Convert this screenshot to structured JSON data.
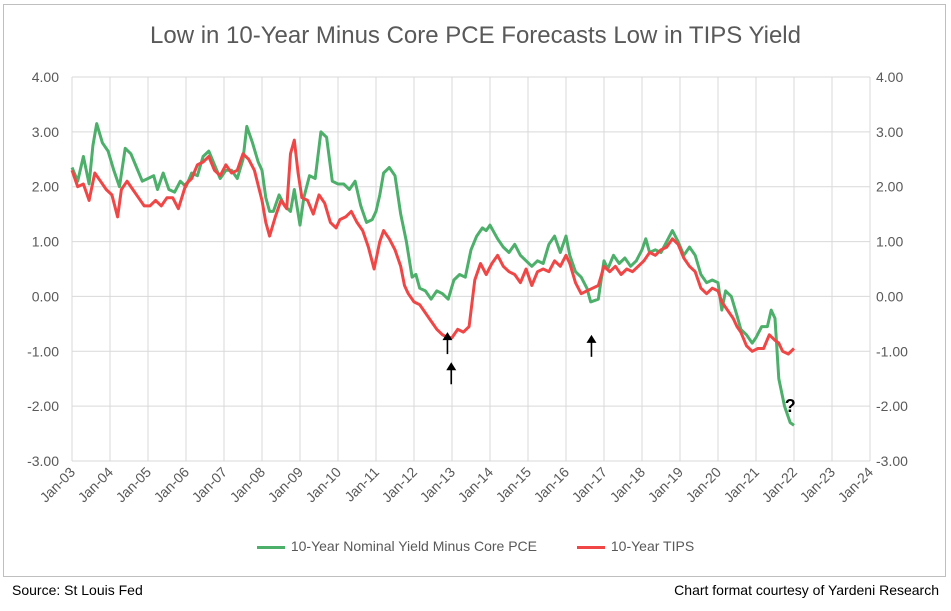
{
  "title": "Low in 10-Year Minus Core PCE Forecasts Low in TIPS Yield",
  "footer": {
    "source": "Source: St Louis Fed",
    "credit": "Chart format courtesy of Yardeni Research"
  },
  "colors": {
    "nominal": "#4caf6a",
    "tips": "#f04646",
    "grid": "#d9d9d9"
  },
  "chart_data": {
    "type": "line",
    "title": "Low in 10-Year Minus Core PCE Forecasts Low in TIPS Yield",
    "ylim": [
      -3,
      4
    ],
    "ytick_labels": [
      "4.00",
      "3.00",
      "2.00",
      "1.00",
      "0.00",
      "-1.00",
      "-2.00",
      "-3.00"
    ],
    "xtick_labels": [
      "Jan-03",
      "Jan-04",
      "Jan-05",
      "Jan-06",
      "Jan-07",
      "Jan-08",
      "Jan-09",
      "Jan-10",
      "Jan-11",
      "Jan-12",
      "Jan-13",
      "Jan-14",
      "Jan-15",
      "Jan-16",
      "Jan-17",
      "Jan-18",
      "Jan-19",
      "Jan-20",
      "Jan-21",
      "Jan-22",
      "Jan-23",
      "Jan-24"
    ],
    "x_range": [
      2003,
      2024
    ],
    "grid": true,
    "legend_position": "bottom",
    "series": [
      {
        "name": "10-Year Nominal Yield Minus Core PCE",
        "points": [
          [
            2003.0,
            2.35
          ],
          [
            2003.15,
            2.1
          ],
          [
            2003.3,
            2.55
          ],
          [
            2003.45,
            2.05
          ],
          [
            2003.55,
            2.75
          ],
          [
            2003.65,
            3.15
          ],
          [
            2003.8,
            2.8
          ],
          [
            2003.95,
            2.65
          ],
          [
            2004.1,
            2.3
          ],
          [
            2004.25,
            2.0
          ],
          [
            2004.4,
            2.7
          ],
          [
            2004.55,
            2.6
          ],
          [
            2004.7,
            2.35
          ],
          [
            2004.85,
            2.1
          ],
          [
            2005.0,
            2.15
          ],
          [
            2005.15,
            2.2
          ],
          [
            2005.25,
            1.95
          ],
          [
            2005.4,
            2.25
          ],
          [
            2005.55,
            1.95
          ],
          [
            2005.7,
            1.9
          ],
          [
            2005.85,
            2.1
          ],
          [
            2006.0,
            2.0
          ],
          [
            2006.15,
            2.25
          ],
          [
            2006.3,
            2.2
          ],
          [
            2006.45,
            2.55
          ],
          [
            2006.6,
            2.65
          ],
          [
            2006.75,
            2.4
          ],
          [
            2006.9,
            2.15
          ],
          [
            2007.05,
            2.3
          ],
          [
            2007.2,
            2.3
          ],
          [
            2007.35,
            2.15
          ],
          [
            2007.5,
            2.5
          ],
          [
            2007.6,
            3.1
          ],
          [
            2007.75,
            2.8
          ],
          [
            2007.9,
            2.45
          ],
          [
            2008.0,
            2.3
          ],
          [
            2008.1,
            1.8
          ],
          [
            2008.2,
            1.55
          ],
          [
            2008.3,
            1.55
          ],
          [
            2008.45,
            1.85
          ],
          [
            2008.6,
            1.65
          ],
          [
            2008.75,
            1.55
          ],
          [
            2008.85,
            1.95
          ],
          [
            2009.0,
            1.3
          ],
          [
            2009.1,
            1.8
          ],
          [
            2009.25,
            2.2
          ],
          [
            2009.4,
            2.15
          ],
          [
            2009.55,
            3.0
          ],
          [
            2009.7,
            2.9
          ],
          [
            2009.85,
            2.1
          ],
          [
            2010.0,
            2.05
          ],
          [
            2010.15,
            2.05
          ],
          [
            2010.3,
            1.95
          ],
          [
            2010.45,
            2.1
          ],
          [
            2010.6,
            1.65
          ],
          [
            2010.75,
            1.35
          ],
          [
            2010.9,
            1.4
          ],
          [
            2011.0,
            1.55
          ],
          [
            2011.1,
            1.85
          ],
          [
            2011.2,
            2.25
          ],
          [
            2011.35,
            2.35
          ],
          [
            2011.5,
            2.2
          ],
          [
            2011.65,
            1.5
          ],
          [
            2011.8,
            1.0
          ],
          [
            2011.95,
            0.35
          ],
          [
            2012.05,
            0.4
          ],
          [
            2012.15,
            0.15
          ],
          [
            2012.3,
            0.1
          ],
          [
            2012.45,
            -0.05
          ],
          [
            2012.6,
            0.1
          ],
          [
            2012.75,
            0.05
          ],
          [
            2012.9,
            -0.05
          ],
          [
            2013.05,
            0.3
          ],
          [
            2013.2,
            0.4
          ],
          [
            2013.35,
            0.35
          ],
          [
            2013.5,
            0.85
          ],
          [
            2013.65,
            1.1
          ],
          [
            2013.8,
            1.25
          ],
          [
            2013.9,
            1.2
          ],
          [
            2014.0,
            1.3
          ],
          [
            2014.2,
            1.05
          ],
          [
            2014.35,
            0.9
          ],
          [
            2014.5,
            0.8
          ],
          [
            2014.65,
            0.95
          ],
          [
            2014.8,
            0.75
          ],
          [
            2014.95,
            0.65
          ],
          [
            2015.1,
            0.55
          ],
          [
            2015.25,
            0.65
          ],
          [
            2015.4,
            0.6
          ],
          [
            2015.55,
            0.95
          ],
          [
            2015.7,
            1.1
          ],
          [
            2015.85,
            0.8
          ],
          [
            2016.0,
            1.1
          ],
          [
            2016.1,
            0.75
          ],
          [
            2016.25,
            0.45
          ],
          [
            2016.4,
            0.35
          ],
          [
            2016.55,
            0.15
          ],
          [
            2016.65,
            -0.1
          ],
          [
            2016.85,
            -0.05
          ],
          [
            2017.0,
            0.65
          ],
          [
            2017.1,
            0.5
          ],
          [
            2017.25,
            0.75
          ],
          [
            2017.4,
            0.6
          ],
          [
            2017.55,
            0.7
          ],
          [
            2017.7,
            0.55
          ],
          [
            2017.85,
            0.65
          ],
          [
            2018.0,
            0.85
          ],
          [
            2018.1,
            1.05
          ],
          [
            2018.2,
            0.8
          ],
          [
            2018.35,
            0.85
          ],
          [
            2018.5,
            0.8
          ],
          [
            2018.65,
            1.0
          ],
          [
            2018.8,
            1.2
          ],
          [
            2018.95,
            1.0
          ],
          [
            2019.1,
            0.75
          ],
          [
            2019.25,
            0.9
          ],
          [
            2019.4,
            0.75
          ],
          [
            2019.55,
            0.4
          ],
          [
            2019.7,
            0.25
          ],
          [
            2019.85,
            0.3
          ],
          [
            2020.0,
            0.25
          ],
          [
            2020.1,
            -0.25
          ],
          [
            2020.2,
            0.1
          ],
          [
            2020.35,
            0.0
          ],
          [
            2020.5,
            -0.35
          ],
          [
            2020.6,
            -0.6
          ],
          [
            2020.75,
            -0.7
          ],
          [
            2020.9,
            -0.85
          ],
          [
            2021.0,
            -0.75
          ],
          [
            2021.15,
            -0.55
          ],
          [
            2021.3,
            -0.55
          ],
          [
            2021.4,
            -0.25
          ],
          [
            2021.5,
            -0.4
          ],
          [
            2021.6,
            -1.5
          ],
          [
            2021.75,
            -2.0
          ],
          [
            2021.9,
            -2.3
          ],
          [
            2022.0,
            -2.35
          ]
        ]
      },
      {
        "name": "10-Year TIPS",
        "points": [
          [
            2003.0,
            2.3
          ],
          [
            2003.15,
            2.0
          ],
          [
            2003.3,
            2.05
          ],
          [
            2003.45,
            1.75
          ],
          [
            2003.6,
            2.25
          ],
          [
            2003.75,
            2.1
          ],
          [
            2003.9,
            1.95
          ],
          [
            2004.05,
            1.85
          ],
          [
            2004.2,
            1.45
          ],
          [
            2004.3,
            1.95
          ],
          [
            2004.45,
            2.1
          ],
          [
            2004.6,
            1.95
          ],
          [
            2004.75,
            1.8
          ],
          [
            2004.9,
            1.65
          ],
          [
            2005.05,
            1.65
          ],
          [
            2005.2,
            1.75
          ],
          [
            2005.35,
            1.65
          ],
          [
            2005.5,
            1.8
          ],
          [
            2005.65,
            1.8
          ],
          [
            2005.8,
            1.6
          ],
          [
            2006.0,
            2.05
          ],
          [
            2006.15,
            2.15
          ],
          [
            2006.3,
            2.4
          ],
          [
            2006.45,
            2.45
          ],
          [
            2006.6,
            2.55
          ],
          [
            2006.75,
            2.3
          ],
          [
            2006.9,
            2.2
          ],
          [
            2007.05,
            2.4
          ],
          [
            2007.2,
            2.25
          ],
          [
            2007.35,
            2.3
          ],
          [
            2007.5,
            2.6
          ],
          [
            2007.65,
            2.5
          ],
          [
            2007.8,
            2.3
          ],
          [
            2008.0,
            1.75
          ],
          [
            2008.1,
            1.35
          ],
          [
            2008.2,
            1.1
          ],
          [
            2008.35,
            1.45
          ],
          [
            2008.5,
            1.75
          ],
          [
            2008.65,
            1.6
          ],
          [
            2008.75,
            2.6
          ],
          [
            2008.85,
            2.85
          ],
          [
            2008.95,
            2.25
          ],
          [
            2009.05,
            1.8
          ],
          [
            2009.2,
            1.75
          ],
          [
            2009.35,
            1.5
          ],
          [
            2009.5,
            1.85
          ],
          [
            2009.65,
            1.7
          ],
          [
            2009.8,
            1.35
          ],
          [
            2009.95,
            1.25
          ],
          [
            2010.05,
            1.4
          ],
          [
            2010.2,
            1.45
          ],
          [
            2010.35,
            1.55
          ],
          [
            2010.5,
            1.35
          ],
          [
            2010.65,
            1.2
          ],
          [
            2010.8,
            0.9
          ],
          [
            2010.95,
            0.5
          ],
          [
            2011.1,
            1.0
          ],
          [
            2011.2,
            1.2
          ],
          [
            2011.35,
            1.05
          ],
          [
            2011.5,
            0.85
          ],
          [
            2011.65,
            0.55
          ],
          [
            2011.75,
            0.2
          ],
          [
            2011.85,
            0.05
          ],
          [
            2012.0,
            -0.1
          ],
          [
            2012.15,
            -0.15
          ],
          [
            2012.3,
            -0.3
          ],
          [
            2012.45,
            -0.45
          ],
          [
            2012.6,
            -0.6
          ],
          [
            2012.75,
            -0.7
          ],
          [
            2012.9,
            -0.75
          ],
          [
            2013.0,
            -0.75
          ],
          [
            2013.15,
            -0.6
          ],
          [
            2013.3,
            -0.65
          ],
          [
            2013.45,
            -0.55
          ],
          [
            2013.6,
            0.3
          ],
          [
            2013.75,
            0.6
          ],
          [
            2013.9,
            0.4
          ],
          [
            2014.05,
            0.6
          ],
          [
            2014.2,
            0.75
          ],
          [
            2014.35,
            0.55
          ],
          [
            2014.5,
            0.45
          ],
          [
            2014.65,
            0.4
          ],
          [
            2014.8,
            0.25
          ],
          [
            2014.95,
            0.5
          ],
          [
            2015.1,
            0.2
          ],
          [
            2015.25,
            0.45
          ],
          [
            2015.4,
            0.5
          ],
          [
            2015.55,
            0.45
          ],
          [
            2015.7,
            0.65
          ],
          [
            2015.85,
            0.55
          ],
          [
            2016.0,
            0.75
          ],
          [
            2016.1,
            0.6
          ],
          [
            2016.25,
            0.25
          ],
          [
            2016.4,
            0.05
          ],
          [
            2016.55,
            0.1
          ],
          [
            2016.7,
            0.15
          ],
          [
            2016.85,
            0.2
          ],
          [
            2017.0,
            0.55
          ],
          [
            2017.15,
            0.45
          ],
          [
            2017.3,
            0.55
          ],
          [
            2017.45,
            0.4
          ],
          [
            2017.6,
            0.5
          ],
          [
            2017.75,
            0.45
          ],
          [
            2017.9,
            0.55
          ],
          [
            2018.05,
            0.65
          ],
          [
            2018.2,
            0.8
          ],
          [
            2018.35,
            0.75
          ],
          [
            2018.5,
            0.85
          ],
          [
            2018.65,
            0.9
          ],
          [
            2018.8,
            1.05
          ],
          [
            2018.95,
            0.95
          ],
          [
            2019.1,
            0.7
          ],
          [
            2019.25,
            0.55
          ],
          [
            2019.4,
            0.45
          ],
          [
            2019.55,
            0.15
          ],
          [
            2019.7,
            0.05
          ],
          [
            2019.85,
            0.15
          ],
          [
            2020.0,
            0.1
          ],
          [
            2020.1,
            -0.1
          ],
          [
            2020.25,
            -0.25
          ],
          [
            2020.4,
            -0.4
          ],
          [
            2020.5,
            -0.55
          ],
          [
            2020.6,
            -0.65
          ],
          [
            2020.75,
            -0.9
          ],
          [
            2020.9,
            -1.0
          ],
          [
            2021.05,
            -0.95
          ],
          [
            2021.2,
            -0.95
          ],
          [
            2021.35,
            -0.7
          ],
          [
            2021.5,
            -0.8
          ],
          [
            2021.6,
            -0.85
          ],
          [
            2021.7,
            -1.0
          ],
          [
            2021.85,
            -1.05
          ],
          [
            2022.0,
            -0.95
          ]
        ]
      }
    ],
    "annotations": [
      {
        "type": "arrow-up",
        "x": 2012.88,
        "y": -0.65
      },
      {
        "type": "arrow-up",
        "x": 2012.98,
        "y": -1.2
      },
      {
        "type": "arrow-up",
        "x": 2016.67,
        "y": -0.7
      },
      {
        "type": "text",
        "text": "?",
        "x": 2021.9,
        "y": -2.0
      }
    ]
  }
}
